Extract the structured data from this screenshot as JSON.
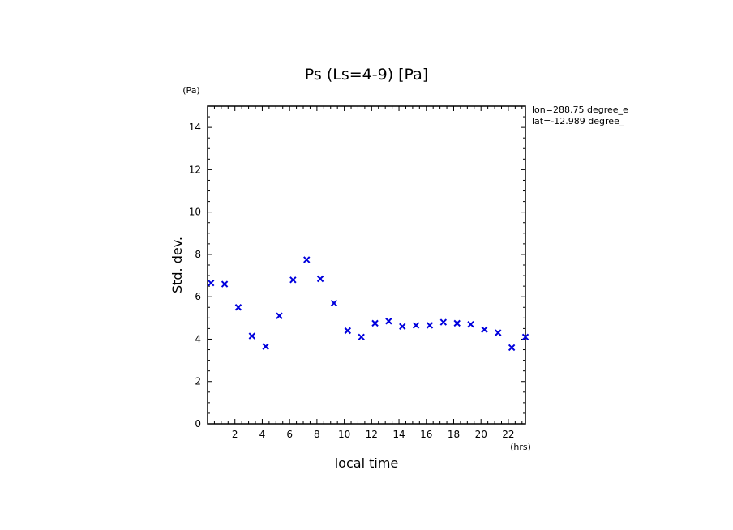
{
  "chart_data": {
    "type": "scatter",
    "title": "Ps (Ls=4-9) [Pa]",
    "xlabel": "local time",
    "ylabel": "Std. dev.",
    "x_unit": "(hrs)",
    "y_unit": "(Pa)",
    "xlim": [
      0,
      23.25
    ],
    "ylim": [
      0,
      15
    ],
    "xticks": [
      2,
      4,
      6,
      8,
      10,
      12,
      14,
      16,
      18,
      20,
      22
    ],
    "yticks": [
      0,
      2,
      4,
      6,
      8,
      10,
      12,
      14
    ],
    "marker": "x",
    "marker_color": "#0000dd",
    "grid": false,
    "annotations": [
      "lon=288.75 degree_e",
      "lat=-12.989 degree_"
    ],
    "x": [
      0.25,
      1.25,
      2.25,
      3.25,
      4.25,
      5.25,
      6.25,
      7.25,
      8.25,
      9.25,
      10.25,
      11.25,
      12.25,
      13.25,
      14.25,
      15.25,
      16.25,
      17.25,
      18.25,
      19.25,
      20.25,
      21.25,
      22.25,
      23.25
    ],
    "y": [
      6.65,
      6.6,
      5.5,
      4.15,
      3.65,
      5.1,
      6.8,
      7.75,
      6.85,
      5.7,
      4.4,
      4.1,
      4.75,
      4.85,
      4.6,
      4.65,
      4.65,
      4.8,
      4.75,
      4.7,
      4.45,
      4.3,
      3.6,
      4.1
    ]
  }
}
